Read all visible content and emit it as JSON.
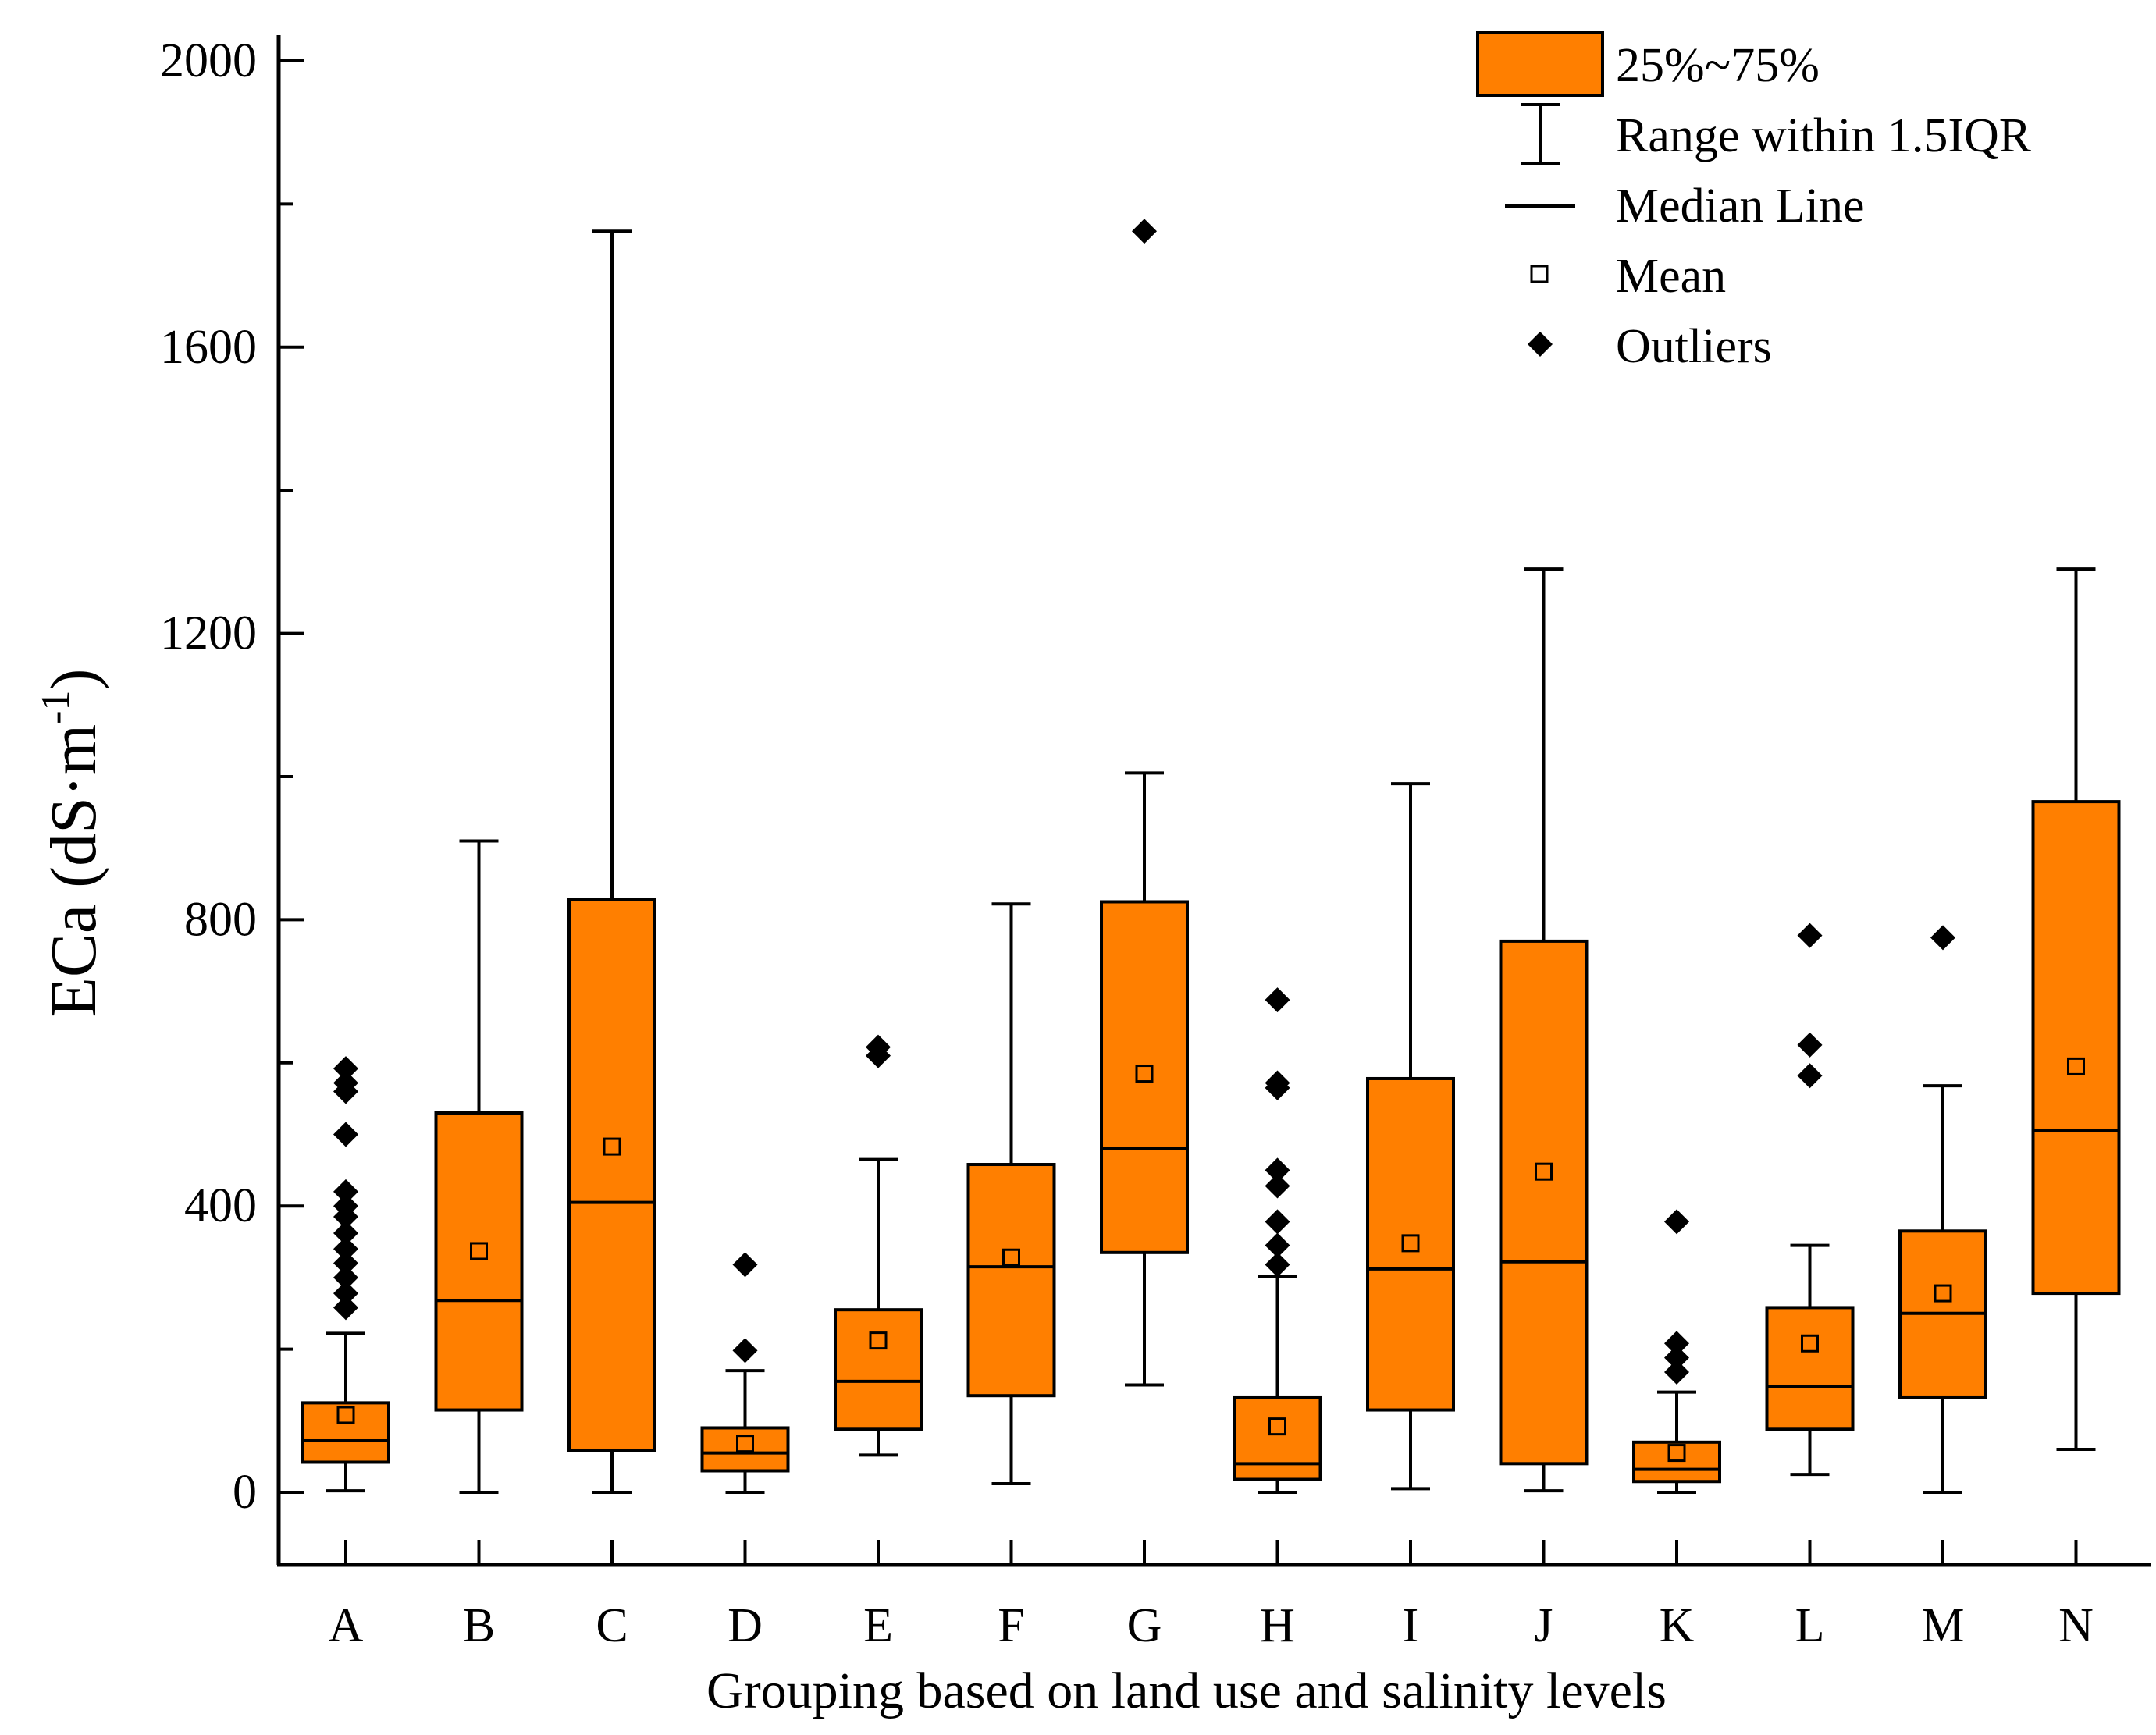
{
  "chart_data": {
    "type": "box",
    "xlabel": "Grouping based on land use and salinity levels",
    "ylabel_main": "ECa (dS·m",
    "ylabel_sup": "-1",
    "ylabel_close": ")",
    "ylim": [
      -100,
      2000
    ],
    "yticks": [
      0,
      400,
      800,
      1200,
      1600,
      2000
    ],
    "box_color": "#ff7f00",
    "legend": {
      "box": "25%~75%",
      "whisker": "Range within 1.5IQR",
      "median": "Median Line",
      "mean": "Mean",
      "outliers": "Outliers"
    },
    "groups": [
      {
        "label": "A",
        "min": 2,
        "q1": 42,
        "median": 72,
        "q3": 125,
        "max": 222,
        "mean": 108,
        "outliers": [
          258,
          278,
          300,
          320,
          340,
          362,
          385,
          400,
          420,
          500,
          560,
          572,
          592
        ]
      },
      {
        "label": "B",
        "min": 0,
        "q1": 115,
        "median": 268,
        "q3": 530,
        "max": 910,
        "mean": 337,
        "outliers": []
      },
      {
        "label": "C",
        "min": 0,
        "q1": 58,
        "median": 405,
        "q3": 828,
        "max": 1762,
        "mean": 483,
        "outliers": []
      },
      {
        "label": "D",
        "min": 0,
        "q1": 30,
        "median": 55,
        "q3": 90,
        "max": 170,
        "mean": 68,
        "outliers": [
          198,
          318
        ]
      },
      {
        "label": "E",
        "min": 52,
        "q1": 88,
        "median": 155,
        "q3": 255,
        "max": 465,
        "mean": 212,
        "outliers": [
          610,
          622
        ]
      },
      {
        "label": "F",
        "min": 12,
        "q1": 135,
        "median": 315,
        "q3": 458,
        "max": 822,
        "mean": 328,
        "outliers": []
      },
      {
        "label": "G",
        "min": 150,
        "q1": 335,
        "median": 480,
        "q3": 825,
        "max": 1005,
        "mean": 585,
        "outliers": [
          1762
        ]
      },
      {
        "label": "H",
        "min": 0,
        "q1": 18,
        "median": 40,
        "q3": 132,
        "max": 302,
        "mean": 92,
        "outliers": [
          318,
          345,
          378,
          428,
          450,
          565,
          572,
          688
        ]
      },
      {
        "label": "I",
        "min": 5,
        "q1": 115,
        "median": 312,
        "q3": 578,
        "max": 990,
        "mean": 348,
        "outliers": []
      },
      {
        "label": "J",
        "min": 2,
        "q1": 40,
        "median": 322,
        "q3": 770,
        "max": 1290,
        "mean": 448,
        "outliers": []
      },
      {
        "label": "K",
        "min": 0,
        "q1": 15,
        "median": 32,
        "q3": 70,
        "max": 140,
        "mean": 55,
        "outliers": [
          168,
          188,
          208,
          378
        ]
      },
      {
        "label": "L",
        "min": 25,
        "q1": 88,
        "median": 148,
        "q3": 258,
        "max": 345,
        "mean": 208,
        "outliers": [
          582,
          625,
          778
        ]
      },
      {
        "label": "M",
        "min": 0,
        "q1": 132,
        "median": 250,
        "q3": 365,
        "max": 568,
        "mean": 278,
        "outliers": [
          775
        ]
      },
      {
        "label": "N",
        "min": 60,
        "q1": 278,
        "median": 505,
        "q3": 965,
        "max": 1290,
        "mean": 595,
        "outliers": []
      }
    ]
  }
}
